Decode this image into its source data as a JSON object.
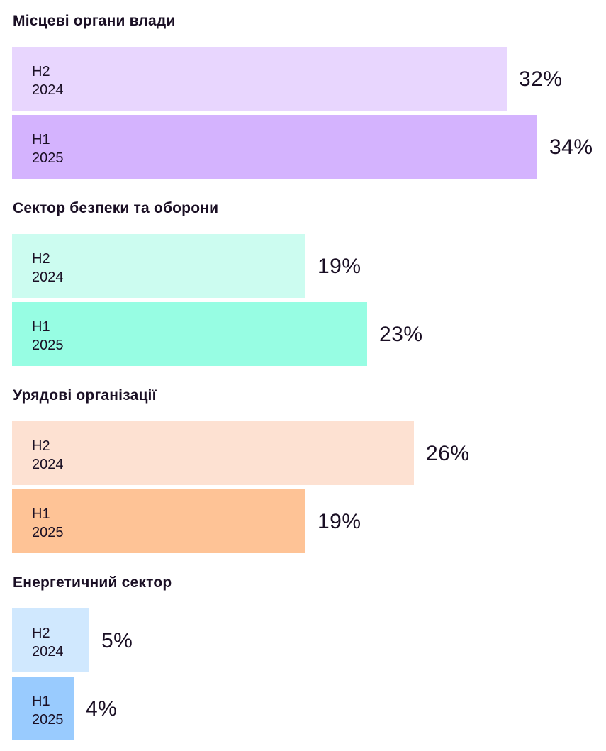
{
  "chart_data": {
    "type": "bar",
    "orientation": "horizontal",
    "unit": "%",
    "groups": [
      {
        "title": "Місцеві органи влади",
        "bars": [
          {
            "period": "H2",
            "year": "2024",
            "value": 32,
            "label": "32%",
            "color": "#e8d6fe"
          },
          {
            "period": "H1",
            "year": "2025",
            "value": 34,
            "label": "34%",
            "color": "#d4b3fe"
          }
        ]
      },
      {
        "title": "Сектор безпеки та оборони",
        "bars": [
          {
            "period": "H2",
            "year": "2024",
            "value": 19,
            "label": "19%",
            "color": "#ccfcf0"
          },
          {
            "period": "H1",
            "year": "2025",
            "value": 23,
            "label": "23%",
            "color": "#97fde3"
          }
        ]
      },
      {
        "title": "Урядові організації",
        "bars": [
          {
            "period": "H2",
            "year": "2024",
            "value": 26,
            "label": "26%",
            "color": "#fde1d2"
          },
          {
            "period": "H1",
            "year": "2025",
            "value": 19,
            "label": "19%",
            "color": "#fec396"
          }
        ]
      },
      {
        "title": "Енергетичний сектор",
        "bars": [
          {
            "period": "H2",
            "year": "2024",
            "value": 5,
            "label": "5%",
            "color": "#d0e8fe"
          },
          {
            "period": "H1",
            "year": "2025",
            "value": 4,
            "label": "4%",
            "color": "#99cbfe"
          }
        ]
      }
    ]
  }
}
